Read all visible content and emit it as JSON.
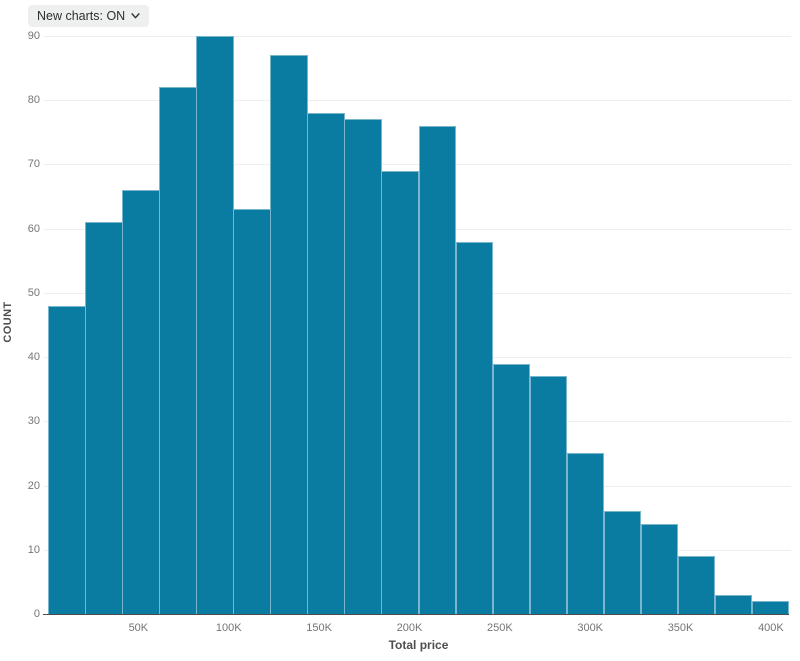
{
  "controls": {
    "new_charts_label": "New charts: ON",
    "chevron_icon": "chevron-down"
  },
  "chart_data": {
    "type": "bar",
    "subtype": "histogram",
    "title": "",
    "xlabel": "Total price",
    "ylabel": "COUNT",
    "values": [
      48,
      61,
      66,
      82,
      90,
      63,
      87,
      78,
      77,
      69,
      76,
      58,
      39,
      37,
      25,
      16,
      14,
      9,
      3,
      2
    ],
    "bin_count": 20,
    "x_domain": [
      0,
      410000
    ],
    "bin_width": 20500,
    "x_ticks": [
      {
        "value": 50000,
        "label": "50K"
      },
      {
        "value": 100000,
        "label": "100K"
      },
      {
        "value": 150000,
        "label": "150K"
      },
      {
        "value": 200000,
        "label": "200K"
      },
      {
        "value": 250000,
        "label": "250K"
      },
      {
        "value": 300000,
        "label": "300K"
      },
      {
        "value": 350000,
        "label": "350K"
      },
      {
        "value": 400000,
        "label": "400K"
      }
    ],
    "y_ticks": [
      0,
      10,
      20,
      30,
      40,
      50,
      60,
      70,
      80,
      90
    ],
    "ylim": [
      0,
      90
    ],
    "grid": "horizontal",
    "legend": "none",
    "colors": {
      "bar_fill": "#0a7ca2",
      "bar_stroke": "#79b5cc",
      "gridline": "#eeeeee",
      "axis_line": "#4d4d4d",
      "tick_label": "#757575",
      "axis_title": "#4f4f4f",
      "dropdown_bg": "#eef0f0"
    }
  }
}
